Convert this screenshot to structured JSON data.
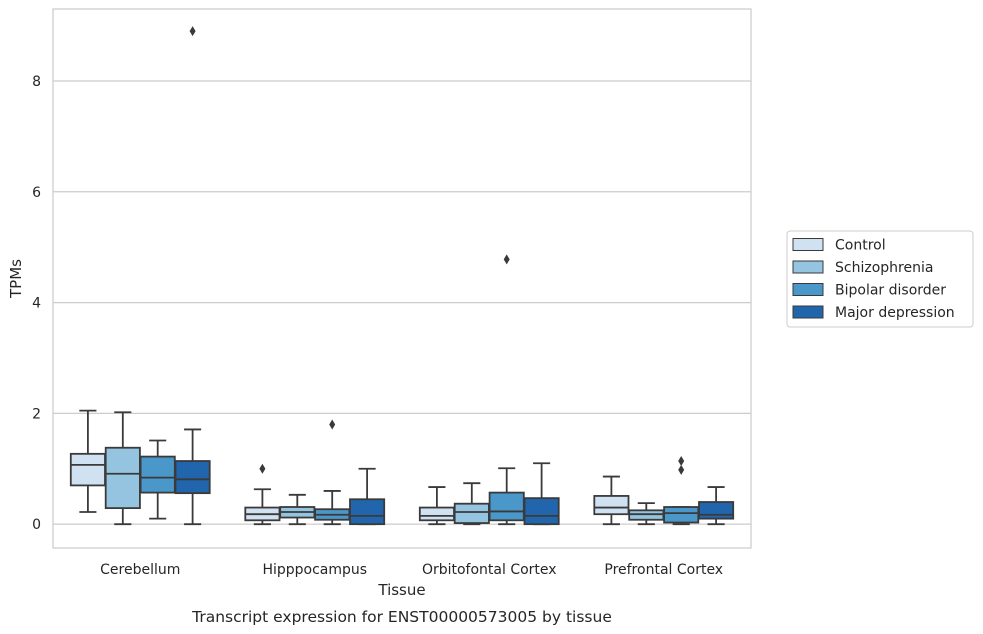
{
  "chart_data": {
    "type": "box",
    "title": "",
    "caption": "Transcript expression for ENST00000573005 by tissue",
    "xlabel": "Tissue",
    "ylabel": "TPMs",
    "ylim": [
      -0.43,
      9.3
    ],
    "yticks": [
      0,
      2,
      4,
      6,
      8
    ],
    "grid": "horizontal",
    "legend_position": "right",
    "categories": [
      "Cerebellum",
      "Hipppocampus",
      "Orbitofontal Cortex",
      "Prefrontal Cortex"
    ],
    "series": [
      {
        "name": "Control",
        "color": "#d0e1f2",
        "boxes": [
          {
            "whislo": 0.22,
            "q1": 0.7,
            "med": 1.07,
            "q3": 1.27,
            "whishi": 2.05,
            "fliers": []
          },
          {
            "whislo": 0.0,
            "q1": 0.07,
            "med": 0.18,
            "q3": 0.3,
            "whishi": 0.63,
            "fliers": [
              1.0
            ]
          },
          {
            "whislo": 0.0,
            "q1": 0.07,
            "med": 0.15,
            "q3": 0.3,
            "whishi": 0.67,
            "fliers": []
          },
          {
            "whislo": 0.0,
            "q1": 0.18,
            "med": 0.3,
            "q3": 0.51,
            "whishi": 0.86,
            "fliers": []
          }
        ]
      },
      {
        "name": "Schizophrenia",
        "color": "#94c4df",
        "boxes": [
          {
            "whislo": 0.0,
            "q1": 0.29,
            "med": 0.91,
            "q3": 1.38,
            "whishi": 2.02,
            "fliers": []
          },
          {
            "whislo": 0.0,
            "q1": 0.12,
            "med": 0.22,
            "q3": 0.31,
            "whishi": 0.53,
            "fliers": []
          },
          {
            "whislo": 0.0,
            "q1": 0.02,
            "med": 0.22,
            "q3": 0.37,
            "whishi": 0.74,
            "fliers": []
          },
          {
            "whislo": 0.0,
            "q1": 0.08,
            "med": 0.18,
            "q3": 0.25,
            "whishi": 0.38,
            "fliers": []
          }
        ]
      },
      {
        "name": "Bipolar disorder",
        "color": "#4a98c9",
        "boxes": [
          {
            "whislo": 0.1,
            "q1": 0.57,
            "med": 0.84,
            "q3": 1.22,
            "whishi": 1.51,
            "fliers": []
          },
          {
            "whislo": 0.0,
            "q1": 0.08,
            "med": 0.17,
            "q3": 0.27,
            "whishi": 0.6,
            "fliers": [
              1.8
            ]
          },
          {
            "whislo": 0.0,
            "q1": 0.07,
            "med": 0.23,
            "q3": 0.57,
            "whishi": 1.01,
            "fliers": [
              4.78
            ]
          },
          {
            "whislo": 0.0,
            "q1": 0.03,
            "med": 0.2,
            "q3": 0.31,
            "whishi": 0.31,
            "fliers": [
              0.98,
              1.14
            ]
          }
        ]
      },
      {
        "name": "Major depression",
        "color": "#2166ac",
        "boxes": [
          {
            "whislo": 0.0,
            "q1": 0.56,
            "med": 0.81,
            "q3": 1.14,
            "whishi": 1.71,
            "fliers": [
              8.9
            ]
          },
          {
            "whislo": 0.0,
            "q1": 0.0,
            "med": 0.15,
            "q3": 0.45,
            "whishi": 1.0,
            "fliers": []
          },
          {
            "whislo": 0.0,
            "q1": 0.0,
            "med": 0.15,
            "q3": 0.47,
            "whishi": 1.1,
            "fliers": []
          },
          {
            "whislo": 0.0,
            "q1": 0.1,
            "med": 0.17,
            "q3": 0.4,
            "whishi": 0.67,
            "fliers": []
          }
        ]
      }
    ]
  }
}
